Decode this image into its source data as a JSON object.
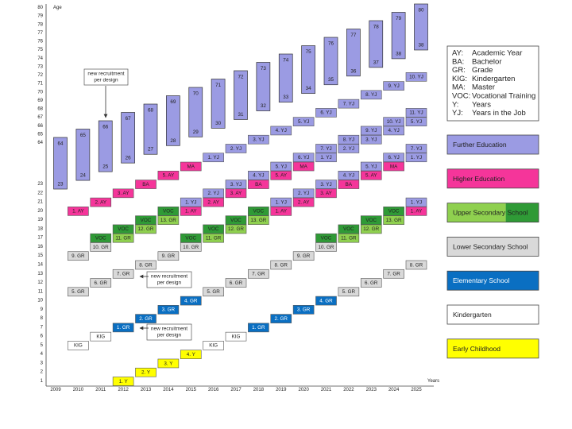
{
  "axis": {
    "y_title": "Age",
    "x_title": "Years",
    "years": [
      2009,
      2010,
      2011,
      2012,
      2013,
      2014,
      2015,
      2016,
      2017,
      2018,
      2019,
      2020,
      2021,
      2022,
      2023,
      2024,
      2025
    ],
    "ages_lower": [
      1,
      2,
      3,
      4,
      5,
      6,
      7,
      8,
      9,
      10,
      11,
      12,
      13,
      14,
      15,
      16,
      17,
      18,
      19,
      20,
      21,
      22,
      23
    ],
    "ages_upper": [
      64,
      65,
      66,
      67,
      68,
      69,
      70,
      71,
      72,
      73,
      74,
      75,
      76,
      77,
      78,
      79,
      80
    ]
  },
  "career_bars": [
    {
      "year": 2009,
      "top": 64,
      "bottom": 23
    },
    {
      "year": 2010,
      "top": 65,
      "bottom": 24
    },
    {
      "year": 2011,
      "top": 66,
      "bottom": 25
    },
    {
      "year": 2012,
      "top": 67,
      "bottom": 26
    },
    {
      "year": 2013,
      "top": 68,
      "bottom": 27
    },
    {
      "year": 2014,
      "top": 69,
      "bottom": 28
    },
    {
      "year": 2015,
      "top": 70,
      "bottom": 29
    },
    {
      "year": 2016,
      "top": 71,
      "bottom": 30
    },
    {
      "year": 2017,
      "top": 72,
      "bottom": 31
    },
    {
      "year": 2018,
      "top": 73,
      "bottom": 32
    },
    {
      "year": 2019,
      "top": 74,
      "bottom": 33
    },
    {
      "year": 2020,
      "top": 75,
      "bottom": 34
    },
    {
      "year": 2021,
      "top": 76,
      "bottom": 35
    },
    {
      "year": 2022,
      "top": 77,
      "bottom": 36
    },
    {
      "year": 2023,
      "top": 78,
      "bottom": 37
    },
    {
      "year": 2024,
      "top": 79,
      "bottom": 38
    },
    {
      "year": 2025,
      "top": 80,
      "bottom": 38
    }
  ],
  "legend": [
    {
      "label": "Further Education",
      "swatches": [
        {
          "color": "#9b9be3",
          "text_color": "#222",
          "cells": [
            [
              "1. YJ",
              2016,
              26
            ],
            [
              "2. YJ",
              2017,
              27
            ],
            [
              "3. YJ",
              2018,
              28
            ],
            [
              "4. YJ",
              2019,
              29
            ],
            [
              "5. YJ",
              2020,
              30
            ],
            [
              "6. YJ",
              2021,
              31
            ],
            [
              "7. YJ",
              2022,
              32
            ],
            [
              "8. YJ",
              2023,
              33
            ],
            [
              "9. YJ",
              2024,
              34
            ],
            [
              "10. YJ",
              2025,
              35
            ],
            [
              "1. YJ",
              2015,
              21
            ],
            [
              "2. YJ",
              2016,
              22
            ],
            [
              "3. YJ",
              2017,
              23
            ],
            [
              "4. YJ",
              2018,
              24
            ],
            [
              "5. YJ",
              2019,
              25
            ],
            [
              "6. YJ",
              2020,
              26
            ],
            [
              "7. YJ",
              2021,
              27
            ],
            [
              "8. YJ",
              2022,
              28
            ],
            [
              "9. YJ",
              2023,
              29
            ],
            [
              "10. YJ",
              2024,
              30
            ],
            [
              "11. YJ",
              2025,
              31
            ],
            [
              "1. YJ",
              2019,
              21
            ],
            [
              "2. YJ",
              2020,
              22
            ],
            [
              "3. YJ",
              2021,
              23
            ],
            [
              "4. YJ",
              2022,
              24
            ],
            [
              "5. YJ",
              2023,
              25
            ],
            [
              "6. YJ",
              2024,
              26
            ],
            [
              "7. YJ",
              2025,
              27
            ],
            [
              "1. YJ",
              2021,
              26
            ],
            [
              "2. YJ",
              2022,
              27
            ],
            [
              "3. YJ",
              2023,
              28
            ],
            [
              "4. YJ",
              2024,
              29
            ],
            [
              "5. YJ",
              2025,
              30
            ],
            [
              "1. YJ",
              2025,
              21
            ],
            [
              "1. YJ",
              2025,
              26
            ]
          ]
        }
      ]
    },
    {
      "label": "Higher Education",
      "swatches": [
        {
          "color": "#f5359a",
          "text_color": "#222",
          "cells": [
            [
              "1. AY",
              2010,
              20
            ],
            [
              "2. AY",
              2011,
              21
            ],
            [
              "3. AY",
              2012,
              22
            ],
            [
              "BA",
              2013,
              23
            ],
            [
              "5. AY",
              2014,
              24
            ],
            [
              "MA",
              2015,
              25
            ],
            [
              "1. AY",
              2015,
              20
            ],
            [
              "2. AY",
              2016,
              21
            ],
            [
              "3. AY",
              2017,
              22
            ],
            [
              "BA",
              2018,
              23
            ],
            [
              "5. AY",
              2019,
              24
            ],
            [
              "MA",
              2020,
              25
            ],
            [
              "1. AY",
              2019,
              20
            ],
            [
              "2. AY",
              2020,
              21
            ],
            [
              "3. AY",
              2021,
              22
            ],
            [
              "BA",
              2022,
              23
            ],
            [
              "5. AY",
              2023,
              24
            ],
            [
              "MA",
              2024,
              25
            ],
            [
              "1. AY",
              2025,
              20
            ]
          ]
        }
      ]
    },
    {
      "label": "Upper Secondary School",
      "swatches": [
        {
          "color": "#8fd04f",
          "text_color": "#222",
          "cells": [
            [
              "11. GR",
              2012,
              17
            ],
            [
              "12. GR",
              2013,
              18
            ],
            [
              "13. GR",
              2014,
              19
            ],
            [
              "11. GR",
              2016,
              17
            ],
            [
              "12. GR",
              2017,
              18
            ],
            [
              "13. GR",
              2018,
              19
            ],
            [
              "11. GR",
              2022,
              17
            ],
            [
              "12. GR",
              2023,
              18
            ],
            [
              "13. GR",
              2024,
              19
            ]
          ]
        },
        {
          "color": "#2f9a36",
          "text_color": "#222",
          "cells": [
            [
              "VOC",
              2011,
              17
            ],
            [
              "VOC",
              2012,
              18
            ],
            [
              "VOC",
              2013,
              19
            ],
            [
              "VOC",
              2014,
              20
            ],
            [
              "VOC",
              2015,
              17
            ],
            [
              "VOC",
              2016,
              18
            ],
            [
              "VOC",
              2017,
              19
            ],
            [
              "VOC",
              2018,
              20
            ],
            [
              "VOC",
              2021,
              17
            ],
            [
              "VOC",
              2022,
              18
            ],
            [
              "VOC",
              2023,
              19
            ],
            [
              "VOC",
              2024,
              20
            ]
          ]
        }
      ]
    },
    {
      "label": "Lower Secondary School",
      "swatches": [
        {
          "color": "#d9d9d9",
          "text_color": "#222",
          "cells": [
            [
              "9. GR",
              2010,
              15
            ],
            [
              "10. GR",
              2011,
              16
            ],
            [
              "5. GR",
              2010,
              11
            ],
            [
              "6. GR",
              2011,
              12
            ],
            [
              "7. GR",
              2012,
              13
            ],
            [
              "8. GR",
              2013,
              14
            ],
            [
              "9. GR",
              2014,
              15
            ],
            [
              "10. GR",
              2015,
              16
            ],
            [
              "5. GR",
              2016,
              11
            ],
            [
              "6. GR",
              2017,
              12
            ],
            [
              "7. GR",
              2018,
              13
            ],
            [
              "8. GR",
              2019,
              14
            ],
            [
              "9. GR",
              2020,
              15
            ],
            [
              "10. GR",
              2021,
              16
            ],
            [
              "5. GR",
              2022,
              11
            ],
            [
              "6. GR",
              2023,
              12
            ],
            [
              "7. GR",
              2024,
              13
            ],
            [
              "8. GR",
              2025,
              14
            ]
          ]
        }
      ]
    },
    {
      "label": "Elementary School",
      "swatches": [
        {
          "color": "#0a6fc2",
          "text_color": "#ffffff",
          "cells": [
            [
              "1. GR",
              2012,
              7
            ],
            [
              "2. GR",
              2013,
              8
            ],
            [
              "3. GR",
              2014,
              9
            ],
            [
              "4. GR",
              2015,
              10
            ],
            [
              "1. GR",
              2018,
              7
            ],
            [
              "2. GR",
              2019,
              8
            ],
            [
              "3. GR",
              2020,
              9
            ],
            [
              "4. GR",
              2021,
              10
            ]
          ]
        }
      ]
    },
    {
      "label": "Kindergarten",
      "swatches": [
        {
          "color": "#ffffff",
          "text_color": "#222",
          "cells": [
            [
              "KIG",
              2010,
              5
            ],
            [
              "KIG",
              2011,
              6
            ],
            [
              "KIG",
              2016,
              5
            ],
            [
              "KIG",
              2017,
              6
            ]
          ]
        }
      ]
    },
    {
      "label": "Early Childhood",
      "swatches": [
        {
          "color": "#ffff00",
          "text_color": "#222",
          "cells": [
            [
              "1. Y",
              2012,
              1
            ],
            [
              "2. Y",
              2013,
              2
            ],
            [
              "3. Y",
              2014,
              3
            ],
            [
              "4. Y",
              2015,
              4
            ]
          ]
        }
      ]
    }
  ],
  "abbreviations": [
    {
      "abbr": "AY:",
      "text": "Academic Year"
    },
    {
      "abbr": "BA:",
      "text": "Bachelor"
    },
    {
      "abbr": "GR:",
      "text": "Grade"
    },
    {
      "abbr": "KIG:",
      "text": "Kindergarten"
    },
    {
      "abbr": "MA:",
      "text": "Master"
    },
    {
      "abbr": "VOC:",
      "text": "Vocational Training"
    },
    {
      "abbr": "Y:",
      "text": "Years"
    },
    {
      "abbr": "YJ:",
      "text": "Years in the Job"
    }
  ],
  "annotations": [
    {
      "lines": [
        "new recruitment",
        "per design"
      ]
    },
    {
      "lines": [
        "new recruitment",
        "per design"
      ]
    },
    {
      "lines": [
        "new recruitment",
        "per design"
      ]
    }
  ]
}
